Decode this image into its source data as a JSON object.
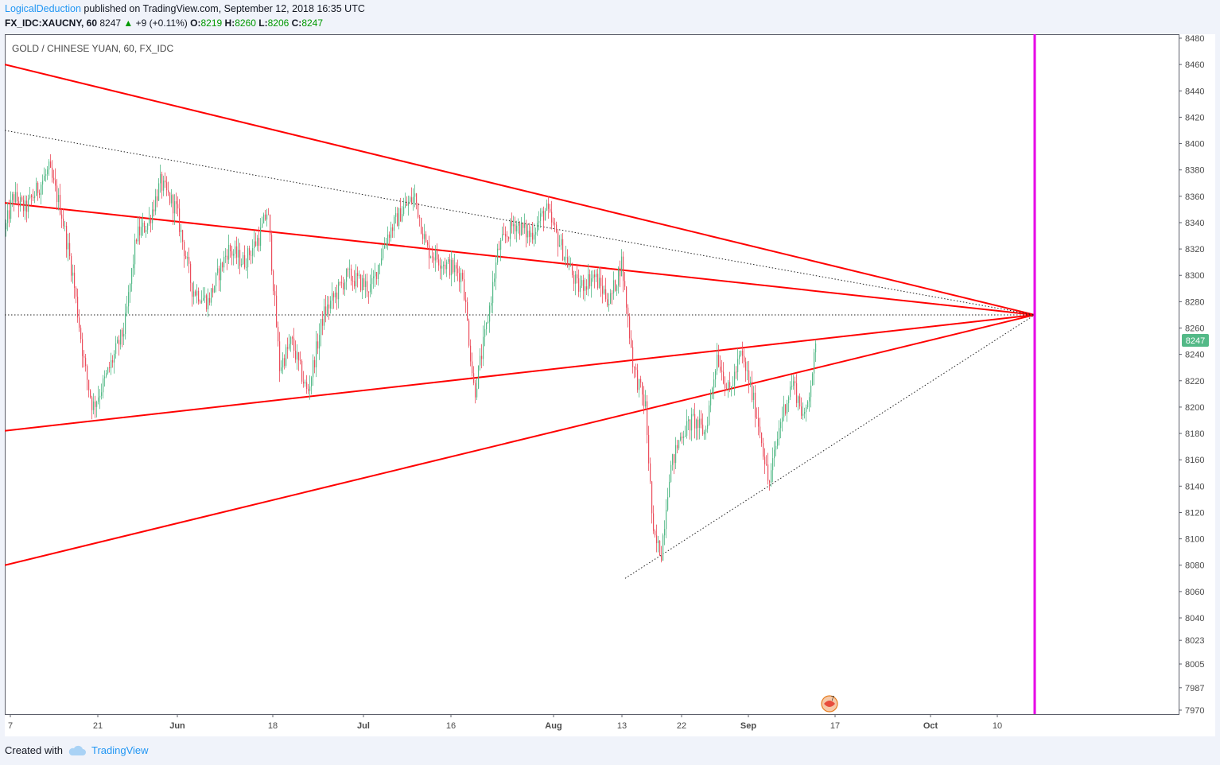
{
  "header": {
    "author": "LogicalDeduction",
    "published_text": "published on TradingView.com, September 12, 2018 16:35 UTC"
  },
  "ticker": {
    "symbol": "FX_IDC:XAUCNY, 60",
    "last": "8247",
    "change": "+9 (+0.11%)",
    "open_label": "O:",
    "open": "8219",
    "high_label": "H:",
    "high": "8260",
    "low_label": "L:",
    "low": "8206",
    "close_label": "C:",
    "close": "8247"
  },
  "chart_data": {
    "type": "candlestick",
    "title": "GOLD / CHINESE YUAN, 60, FX_IDC",
    "y_ticks": [
      8480,
      8460,
      8440,
      8420,
      8400,
      8380,
      8360,
      8340,
      8320,
      8300,
      8280,
      8260,
      8240,
      8220,
      8200,
      8180,
      8160,
      8140,
      8120,
      8100,
      8080,
      8060,
      8040,
      8023,
      8005,
      7987,
      7970
    ],
    "ylim": [
      7970,
      8480
    ],
    "x_ticks": [
      "7",
      "21",
      "Jun",
      "18",
      "Jul",
      "16",
      "Aug",
      "13",
      "22",
      "Sep",
      "17",
      "Oct",
      "10"
    ],
    "last_price_label": "8247",
    "approx_price_path": [
      [
        0,
        8335
      ],
      [
        10,
        8360
      ],
      [
        25,
        8350
      ],
      [
        55,
        8380
      ],
      [
        70,
        8350
      ],
      [
        85,
        8300
      ],
      [
        100,
        8230
      ],
      [
        110,
        8200
      ],
      [
        125,
        8220
      ],
      [
        150,
        8260
      ],
      [
        165,
        8330
      ],
      [
        180,
        8340
      ],
      [
        195,
        8370
      ],
      [
        215,
        8350
      ],
      [
        235,
        8290
      ],
      [
        255,
        8280
      ],
      [
        280,
        8320
      ],
      [
        300,
        8310
      ],
      [
        320,
        8330
      ],
      [
        330,
        8350
      ],
      [
        345,
        8230
      ],
      [
        360,
        8250
      ],
      [
        380,
        8210
      ],
      [
        400,
        8270
      ],
      [
        430,
        8300
      ],
      [
        460,
        8290
      ],
      [
        480,
        8330
      ],
      [
        500,
        8350
      ],
      [
        515,
        8360
      ],
      [
        530,
        8320
      ],
      [
        550,
        8310
      ],
      [
        575,
        8300
      ],
      [
        590,
        8210
      ],
      [
        605,
        8260
      ],
      [
        620,
        8320
      ],
      [
        640,
        8340
      ],
      [
        660,
        8330
      ],
      [
        680,
        8350
      ],
      [
        700,
        8320
      ],
      [
        720,
        8290
      ],
      [
        740,
        8300
      ],
      [
        760,
        8280
      ],
      [
        775,
        8310
      ],
      [
        790,
        8230
      ],
      [
        805,
        8200
      ],
      [
        815,
        8100
      ],
      [
        825,
        8090
      ],
      [
        835,
        8150
      ],
      [
        850,
        8180
      ],
      [
        865,
        8190
      ],
      [
        880,
        8180
      ],
      [
        895,
        8240
      ],
      [
        910,
        8210
      ],
      [
        925,
        8240
      ],
      [
        935,
        8220
      ],
      [
        950,
        8180
      ],
      [
        960,
        8140
      ],
      [
        975,
        8190
      ],
      [
        990,
        8220
      ],
      [
        1005,
        8190
      ],
      [
        1020,
        8247
      ]
    ],
    "trendlines": [
      {
        "style": "solid",
        "color": "#ff0000",
        "from": [
          0,
          8460
        ],
        "to": [
          1295,
          8270
        ]
      },
      {
        "style": "solid",
        "color": "#ff0000",
        "from": [
          0,
          8355
        ],
        "to": [
          1295,
          8270
        ]
      },
      {
        "style": "solid",
        "color": "#ff0000",
        "from": [
          0,
          8182
        ],
        "to": [
          1295,
          8270
        ]
      },
      {
        "style": "solid",
        "color": "#ff0000",
        "from": [
          0,
          8080
        ],
        "to": [
          1295,
          8270
        ]
      },
      {
        "style": "dotted",
        "color": "#222222",
        "from": [
          0,
          8410
        ],
        "to": [
          1295,
          8270
        ]
      },
      {
        "style": "dotted",
        "color": "#222222",
        "from": [
          0,
          8270
        ],
        "to": [
          1295,
          8270
        ]
      },
      {
        "style": "dotted",
        "color": "#222222",
        "from": [
          780,
          8070
        ],
        "to": [
          1295,
          8270
        ]
      }
    ],
    "vertical_line": {
      "color": "#e600e6",
      "label": ""
    },
    "grid": false,
    "events_badge": "7"
  },
  "footer": {
    "created_with": "Created with",
    "brand": "TradingView"
  },
  "colors": {
    "up_candle": "#53b987",
    "down_candle": "#eb4d5c",
    "trendline": "#ff0000",
    "vertical": "#e600e6",
    "price_tag": "#53b987",
    "brand": "#2196f3"
  }
}
